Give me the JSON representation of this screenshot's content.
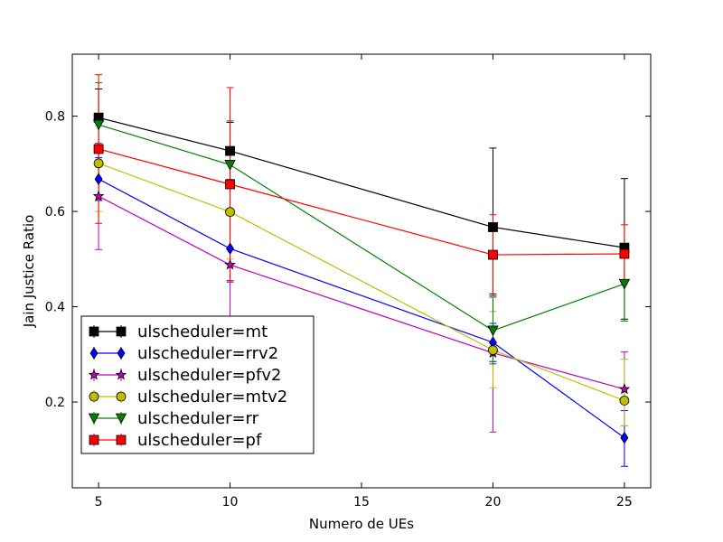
{
  "chart_data": {
    "type": "line",
    "title": "",
    "xlabel": "Numero de UEs",
    "ylabel": "Jain Justice Ratio",
    "xlim": [
      4,
      26
    ],
    "ylim": [
      0.02,
      0.93
    ],
    "xticks": [
      5,
      10,
      15,
      20,
      25
    ],
    "xtick_labels": [
      "5",
      "10",
      "15",
      "20",
      "25"
    ],
    "yticks": [
      0.2,
      0.4,
      0.6,
      0.8
    ],
    "ytick_labels": [
      "0.2",
      "0.4",
      "0.6",
      "0.8"
    ],
    "grid": false,
    "legend_position": "lower-left",
    "x": [
      5,
      10,
      20,
      25
    ],
    "series": [
      {
        "name": "ulscheduler=mt",
        "color": "#000000",
        "marker": "square",
        "values": [
          0.797,
          0.727,
          0.567,
          0.524
        ],
        "err_low": [
          0.737,
          0.667,
          0.427,
          0.374
        ],
        "err_high": [
          0.857,
          0.787,
          0.733,
          0.669
        ]
      },
      {
        "name": "ulscheduler=rrv2",
        "color": "#0000ff",
        "marker": "diamond",
        "values": [
          0.668,
          0.522,
          0.325,
          0.125
        ],
        "err_low": [
          0.623,
          0.452,
          0.285,
          0.065
        ],
        "err_high": [
          0.713,
          0.592,
          0.365,
          0.182
        ]
      },
      {
        "name": "ulscheduler=pfv2",
        "color": "#bf00bf",
        "marker": "star",
        "values": [
          0.632,
          0.488,
          0.303,
          0.227
        ],
        "err_low": [
          0.52,
          0.32,
          0.137,
          0.15
        ],
        "err_high": [
          0.743,
          0.595,
          0.42,
          0.305
        ]
      },
      {
        "name": "ulscheduler=mtv2",
        "color": "#bfbf00",
        "marker": "circle",
        "values": [
          0.701,
          0.599,
          0.309,
          0.203
        ],
        "err_low": [
          0.6,
          0.5,
          0.23,
          0.15
        ],
        "err_high": [
          0.8,
          0.7,
          0.39,
          0.29
        ]
      },
      {
        "name": "ulscheduler=rr",
        "color": "#008000",
        "marker": "triangle-down",
        "values": [
          0.782,
          0.698,
          0.35,
          0.448
        ],
        "err_low": [
          0.7,
          0.605,
          0.28,
          0.37
        ],
        "err_high": [
          0.87,
          0.79,
          0.42,
          0.525
        ]
      },
      {
        "name": "ulscheduler=pf",
        "color": "#ff0000",
        "marker": "square",
        "values": [
          0.731,
          0.657,
          0.509,
          0.511
        ],
        "err_low": [
          0.575,
          0.455,
          0.423,
          0.45
        ],
        "err_high": [
          0.887,
          0.86,
          0.593,
          0.572
        ]
      }
    ]
  }
}
